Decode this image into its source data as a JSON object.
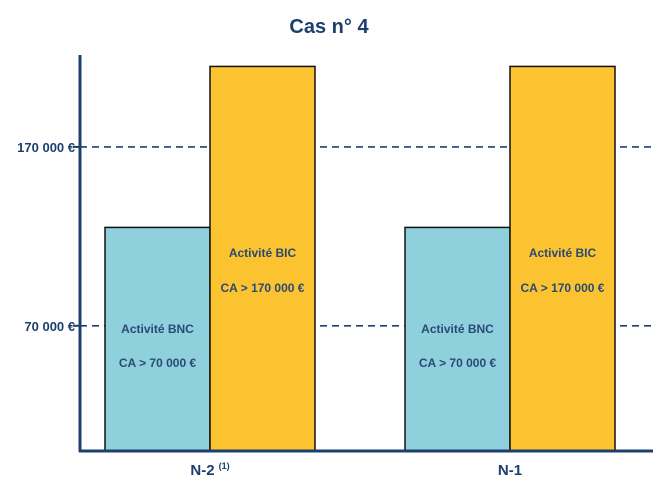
{
  "chart_data": {
    "type": "bar",
    "title": "Cas n° 4",
    "categories": [
      {
        "label": "N-2",
        "superscript": "(1)"
      },
      {
        "label": "N-1",
        "superscript": ""
      }
    ],
    "reference_lines": [
      {
        "value": 70000,
        "label": "70 000 €"
      },
      {
        "value": 170000,
        "label": "170 000 €"
      }
    ],
    "ylim": [
      0,
      205000
    ],
    "series": [
      {
        "values": [
          125000,
          215000
        ],
        "bar_labels": [
          [
            "Activité BNC",
            "CA > 70 000 €"
          ],
          [
            "Activité BIC",
            "CA > 170 000 €"
          ]
        ]
      },
      {
        "values": [
          125000,
          215000
        ],
        "bar_labels": [
          [
            "Activité BNC",
            "CA > 70 000 €"
          ],
          [
            "Activité BIC",
            "CA > 170 000 €"
          ]
        ]
      }
    ],
    "bar_colors": [
      "#8ed0dc",
      "#fbc32f"
    ],
    "axis_color": "#1c3f6e",
    "label_color": "#2a4a75"
  }
}
